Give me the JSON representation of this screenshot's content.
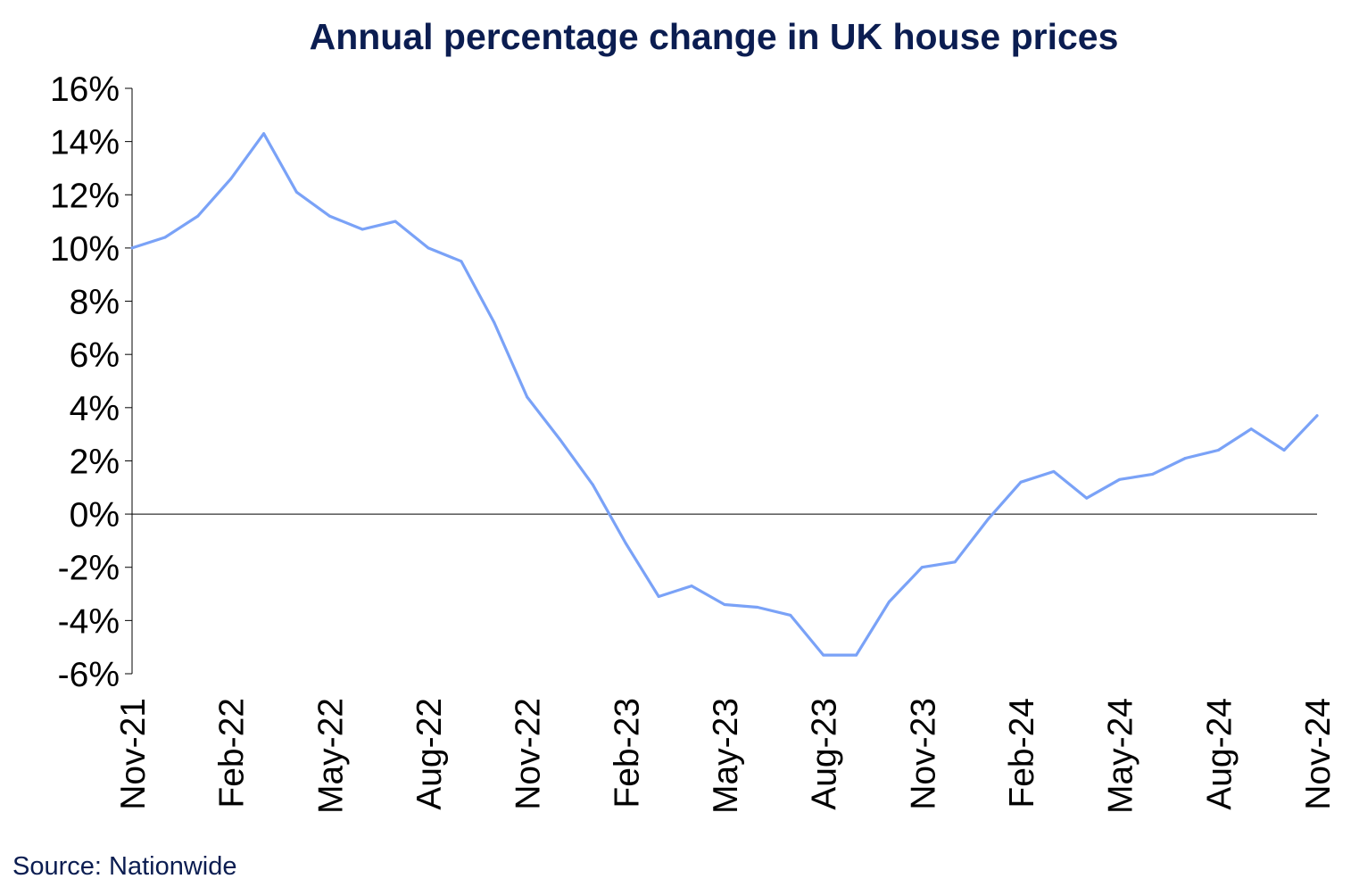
{
  "chart_data": {
    "type": "line",
    "title": "Annual percentage change in UK house prices",
    "xlabel": "",
    "ylabel": "",
    "ylim": [
      -6,
      16
    ],
    "y_ticks": [
      "16%",
      "14%",
      "12%",
      "10%",
      "8%",
      "6%",
      "4%",
      "2%",
      "0%",
      "-2%",
      "-4%",
      "-6%"
    ],
    "x_tick_labels": [
      "Nov-21",
      "Feb-22",
      "May-22",
      "Aug-22",
      "Nov-22",
      "Feb-23",
      "May-23",
      "Aug-23",
      "Nov-23",
      "Feb-24",
      "May-24",
      "Aug-24",
      "Nov-24"
    ],
    "x": [
      "Nov-21",
      "Dec-21",
      "Jan-22",
      "Feb-22",
      "Mar-22",
      "Apr-22",
      "May-22",
      "Jun-22",
      "Jul-22",
      "Aug-22",
      "Sep-22",
      "Oct-22",
      "Nov-22",
      "Dec-22",
      "Jan-23",
      "Feb-23",
      "Mar-23",
      "Apr-23",
      "May-23",
      "Jun-23",
      "Jul-23",
      "Aug-23",
      "Sep-23",
      "Oct-23",
      "Nov-23",
      "Dec-23",
      "Jan-24",
      "Feb-24",
      "Mar-24",
      "Apr-24",
      "May-24",
      "Jun-24",
      "Jul-24",
      "Aug-24",
      "Sep-24",
      "Oct-24",
      "Nov-24"
    ],
    "series": [
      {
        "color": "#7aa2f7",
        "values": [
          10.0,
          10.4,
          11.2,
          12.6,
          14.3,
          12.1,
          11.2,
          10.7,
          11.0,
          10.0,
          9.5,
          7.2,
          4.4,
          2.8,
          1.1,
          -1.1,
          -3.1,
          -2.7,
          -3.4,
          -3.5,
          -3.8,
          -5.3,
          -5.3,
          -3.3,
          -2.0,
          -1.8,
          -0.2,
          1.2,
          1.6,
          0.6,
          1.3,
          1.5,
          2.1,
          2.4,
          3.2,
          2.4,
          3.7
        ]
      }
    ],
    "grid": false,
    "legend": "none"
  },
  "source": "Source: Nationwide"
}
